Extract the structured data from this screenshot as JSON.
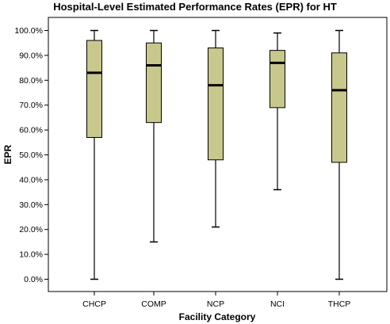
{
  "chart_data": {
    "type": "boxplot",
    "title": "Hospital-Level Estimated Performance Rates (EPR) for HT",
    "xlabel": "Facility Category",
    "ylabel": "EPR",
    "ylim": [
      -0.05,
      1.05
    ],
    "yticks": [
      {
        "value": 0.0,
        "label": "0.0%"
      },
      {
        "value": 0.1,
        "label": "10.0%"
      },
      {
        "value": 0.2,
        "label": "20.0%"
      },
      {
        "value": 0.3,
        "label": "30.0%"
      },
      {
        "value": 0.4,
        "label": "40.0%"
      },
      {
        "value": 0.5,
        "label": "50.0%"
      },
      {
        "value": 0.6,
        "label": "60.0%"
      },
      {
        "value": 0.7,
        "label": "70.0%"
      },
      {
        "value": 0.8,
        "label": "80.0%"
      },
      {
        "value": 0.9,
        "label": "90.0%"
      },
      {
        "value": 1.0,
        "label": "100.0%"
      }
    ],
    "grid": false,
    "box_color": "#c8c88c",
    "categories": [
      "CHCP",
      "COMP",
      "NCP",
      "NCI",
      "THCP"
    ],
    "boxes": [
      {
        "category": "CHCP",
        "min": 0.0,
        "q1": 0.57,
        "median": 0.83,
        "q3": 0.96,
        "max": 1.0
      },
      {
        "category": "COMP",
        "min": 0.15,
        "q1": 0.63,
        "median": 0.86,
        "q3": 0.95,
        "max": 1.0
      },
      {
        "category": "NCP",
        "min": 0.21,
        "q1": 0.48,
        "median": 0.78,
        "q3": 0.93,
        "max": 1.0
      },
      {
        "category": "NCI",
        "min": 0.36,
        "q1": 0.69,
        "median": 0.87,
        "q3": 0.92,
        "max": 0.99
      },
      {
        "category": "THCP",
        "min": 0.0,
        "q1": 0.47,
        "median": 0.76,
        "q3": 0.91,
        "max": 1.0
      }
    ]
  }
}
